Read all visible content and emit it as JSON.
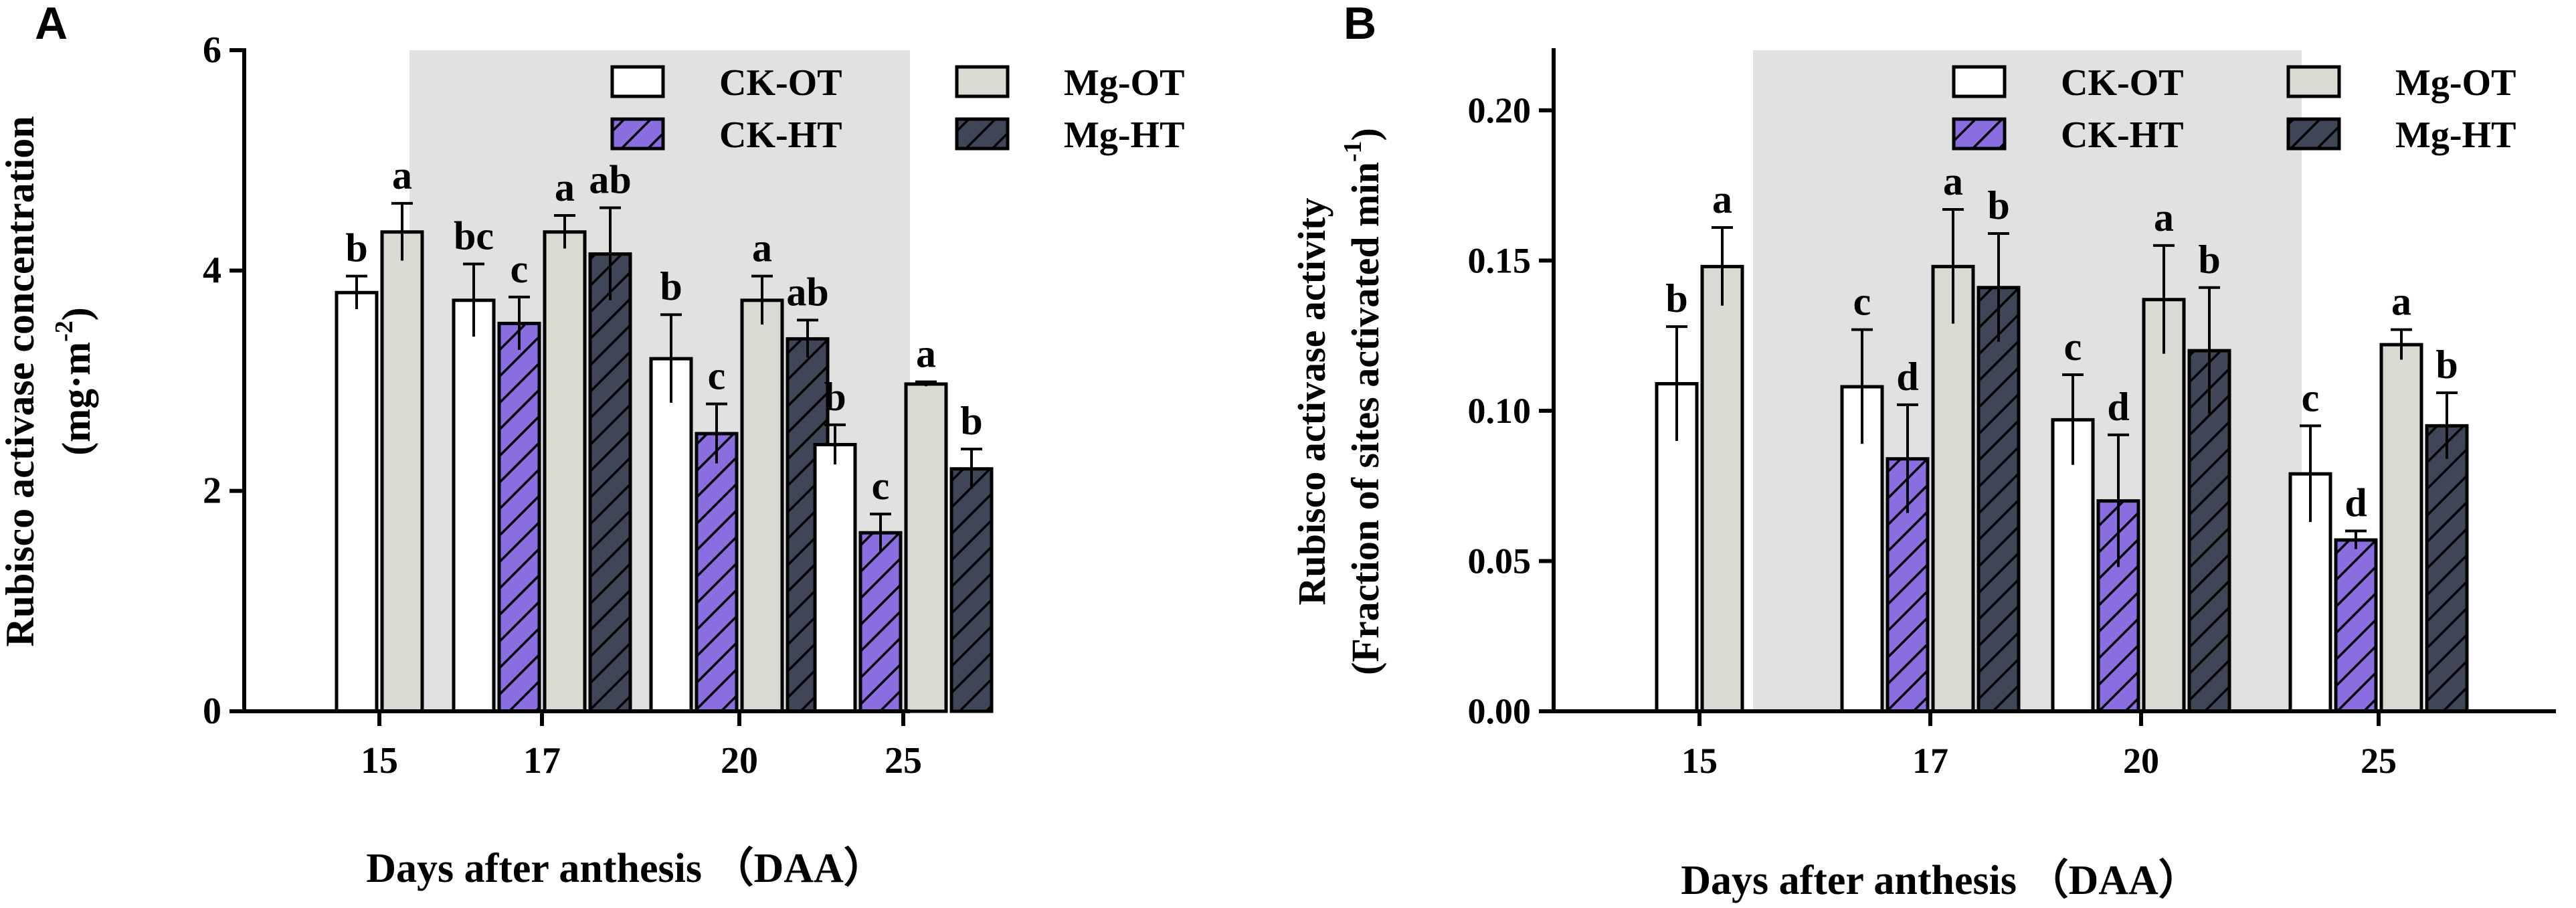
{
  "colors": {
    "shade": "#e1e1e1",
    "ck_ot": "#ffffff",
    "ck_ht": "#8a6ee0",
    "mg_ot": "#d7dbd2",
    "mg_ht": "#3f4657",
    "stroke": "#000000"
  },
  "chart_data": [
    {
      "type": "bar",
      "panel_label": "A",
      "ylabel": "Rubisco activase concentration",
      "ylabel_unit_parts": [
        "(mg·m",
        "-2",
        ")"
      ],
      "xlabel": "Days after anthesis （DAA）",
      "ylim": [
        0,
        6
      ],
      "y_ticks": [
        0,
        2,
        4,
        6
      ],
      "y_tick_labels": [
        "0",
        "2",
        "4",
        "6"
      ],
      "categories": [
        "15",
        "17",
        "20",
        "25"
      ],
      "shaded_categories": [
        "17",
        "20"
      ],
      "series": [
        {
          "name": "CK-OT",
          "pattern": "open",
          "values": [
            3.8,
            3.73,
            3.2,
            2.42
          ],
          "errors": [
            0.15,
            0.33,
            0.4,
            0.18
          ],
          "letters": [
            "b",
            "bc",
            "b",
            "b"
          ]
        },
        {
          "name": "CK-HT",
          "pattern": "hatched",
          "values": [
            null,
            3.52,
            2.52,
            1.62
          ],
          "errors": [
            null,
            0.24,
            0.27,
            0.17
          ],
          "letters": [
            null,
            "c",
            "c",
            "c"
          ]
        },
        {
          "name": "Mg-OT",
          "pattern": "solid",
          "values": [
            4.35,
            4.35,
            3.73,
            2.97
          ],
          "errors": [
            0.26,
            0.15,
            0.22,
            0.02
          ],
          "letters": [
            "a",
            "a",
            "a",
            "a"
          ]
        },
        {
          "name": "Mg-HT",
          "pattern": "hatched",
          "values": [
            null,
            4.15,
            3.38,
            2.2
          ],
          "errors": [
            null,
            0.42,
            0.17,
            0.18
          ],
          "letters": [
            null,
            "ab",
            "ab",
            "b"
          ]
        }
      ],
      "legend": {
        "position": "top-right",
        "columns": [
          [
            "CK-OT",
            "CK-HT"
          ],
          [
            "Mg-OT",
            "Mg-HT"
          ]
        ]
      }
    },
    {
      "type": "bar",
      "panel_label": "B",
      "ylabel": "Rubisco activase activity",
      "ylabel_unit_parts": [
        "(Fraction of sites activated min",
        "-1",
        ")"
      ],
      "xlabel": "Days after anthesis （DAA）",
      "ylim": [
        0,
        0.22
      ],
      "y_ticks": [
        0,
        0.05,
        0.1,
        0.15,
        0.2
      ],
      "y_tick_labels": [
        "0.00",
        "0.05",
        "0.10",
        "0.15",
        "0.20"
      ],
      "categories": [
        "15",
        "17",
        "20",
        "25"
      ],
      "shaded_categories": [
        "17",
        "20"
      ],
      "series": [
        {
          "name": "CK-OT",
          "pattern": "open",
          "values": [
            0.109,
            0.108,
            0.097,
            0.079
          ],
          "errors": [
            0.019,
            0.019,
            0.015,
            0.016
          ],
          "letters": [
            "b",
            "c",
            "c",
            "c"
          ]
        },
        {
          "name": "CK-HT",
          "pattern": "hatched",
          "values": [
            null,
            0.084,
            0.07,
            0.057
          ],
          "errors": [
            null,
            0.018,
            0.022,
            0.003
          ],
          "letters": [
            null,
            "d",
            "d",
            "d"
          ]
        },
        {
          "name": "Mg-OT",
          "pattern": "solid",
          "values": [
            0.148,
            0.148,
            0.137,
            0.122
          ],
          "errors": [
            0.013,
            0.019,
            0.018,
            0.005
          ],
          "letters": [
            "a",
            "a",
            "a",
            "a"
          ]
        },
        {
          "name": "Mg-HT",
          "pattern": "hatched",
          "values": [
            null,
            0.141,
            0.12,
            0.095
          ],
          "errors": [
            null,
            0.018,
            0.021,
            0.011
          ],
          "letters": [
            null,
            "b",
            "b",
            "b"
          ]
        }
      ],
      "legend": {
        "position": "top-right",
        "columns": [
          [
            "CK-OT",
            "CK-HT"
          ],
          [
            "Mg-OT",
            "Mg-HT"
          ]
        ]
      }
    }
  ]
}
